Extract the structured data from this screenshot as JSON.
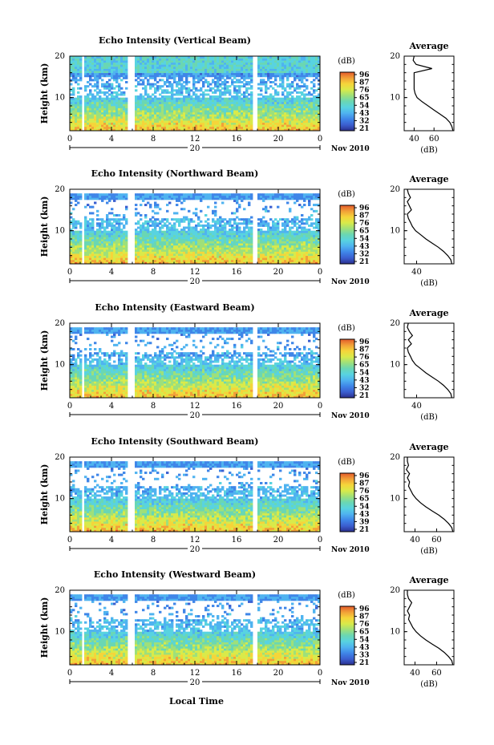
{
  "figure": {
    "global_xlabel": "Local Time",
    "date_label": "Nov 2010",
    "day_label": "20",
    "ylabel": "Height (km)",
    "colorbar_unit": "(dB)",
    "avg_title": "Average",
    "avg_xlabel": "(dB)"
  },
  "colors": {
    "scale": [
      "#2b2f8f",
      "#3b5fd0",
      "#3f86e8",
      "#4fb3f0",
      "#58d3e0",
      "#6ad7b3",
      "#9ee07a",
      "#d9ea4a",
      "#f5d53a",
      "#f2a038",
      "#e35a2a"
    ]
  },
  "chart_data": [
    {
      "type": "heatmap",
      "title": "Echo Intensity (Vertical Beam)",
      "x_ticks": [
        "0",
        "4",
        "8",
        "12",
        "16",
        "20",
        "0"
      ],
      "xlim": [
        0,
        24
      ],
      "y_ticks": [
        "10",
        "20"
      ],
      "ylim": [
        2,
        20
      ],
      "colorbar_ticks": [
        "96",
        "87",
        "76",
        "65",
        "54",
        "43",
        "32",
        "21"
      ],
      "data_gaps_hours": [
        [
          1.2,
          1.4
        ],
        [
          5.5,
          6.3
        ],
        [
          17.6,
          17.9
        ]
      ],
      "profile": {
        "title": "Average",
        "x_ticks": [
          "40",
          "60"
        ],
        "xlim": [
          30,
          80
        ],
        "y_ticks": [
          "10",
          "20"
        ],
        "ylim": [
          2,
          20
        ],
        "height_km": [
          2,
          3,
          4,
          5,
          6,
          7,
          8,
          9,
          10,
          11,
          12,
          13,
          14,
          15,
          16,
          17,
          18,
          19,
          20
        ],
        "value_db": [
          79,
          78,
          76,
          72,
          66,
          60,
          54,
          48,
          43,
          41,
          40,
          40,
          40,
          40,
          40,
          58,
          42,
          39,
          40
        ]
      }
    },
    {
      "type": "heatmap",
      "title": "Echo Intensity (Northward Beam)",
      "x_ticks": [
        "0",
        "4",
        "8",
        "12",
        "16",
        "20",
        "0"
      ],
      "xlim": [
        0,
        24
      ],
      "y_ticks": [
        "10",
        "20"
      ],
      "ylim": [
        2,
        20
      ],
      "colorbar_ticks": [
        "96",
        "87",
        "76",
        "65",
        "54",
        "43",
        "32",
        "21"
      ],
      "data_gaps_hours": [
        [
          1.2,
          1.4
        ],
        [
          5.5,
          6.3
        ],
        [
          17.6,
          17.9
        ]
      ],
      "profile": {
        "title": "Average",
        "x_ticks": [
          "40"
        ],
        "xlim": [
          28,
          76
        ],
        "y_ticks": [
          "10",
          "20"
        ],
        "ylim": [
          2,
          20
        ],
        "height_km": [
          2,
          3,
          4,
          5,
          6,
          7,
          8,
          9,
          10,
          11,
          12,
          13,
          14,
          15,
          16,
          17,
          18,
          19,
          20
        ],
        "value_db": [
          74,
          73,
          70,
          66,
          61,
          55,
          49,
          44,
          39,
          36,
          34,
          32,
          31,
          35,
          33,
          31,
          34,
          32,
          31
        ]
      }
    },
    {
      "type": "heatmap",
      "title": "Echo Intensity (Eastward Beam)",
      "x_ticks": [
        "0",
        "4",
        "8",
        "12",
        "16",
        "20",
        "0"
      ],
      "xlim": [
        0,
        24
      ],
      "y_ticks": [
        "10",
        "20"
      ],
      "ylim": [
        2,
        20
      ],
      "colorbar_ticks": [
        "96",
        "87",
        "76",
        "65",
        "54",
        "43",
        "32",
        "21"
      ],
      "data_gaps_hours": [
        [
          1.2,
          1.4
        ],
        [
          5.5,
          6.3
        ],
        [
          17.6,
          17.9
        ]
      ],
      "profile": {
        "title": "Average",
        "x_ticks": [
          "40"
        ],
        "xlim": [
          28,
          76
        ],
        "y_ticks": [
          "10",
          "20"
        ],
        "ylim": [
          2,
          20
        ],
        "height_km": [
          2,
          3,
          4,
          5,
          6,
          7,
          8,
          9,
          10,
          11,
          12,
          13,
          14,
          15,
          16,
          17,
          18,
          19,
          20
        ],
        "value_db": [
          74,
          73,
          70,
          66,
          61,
          55,
          49,
          44,
          39,
          36,
          34,
          32,
          31,
          35,
          32,
          36,
          33,
          31,
          32
        ]
      }
    },
    {
      "type": "heatmap",
      "title": "Echo Intensity (Southward Beam)",
      "x_ticks": [
        "0",
        "4",
        "8",
        "12",
        "16",
        "20",
        "0"
      ],
      "xlim": [
        0,
        24
      ],
      "y_ticks": [
        "10",
        "20"
      ],
      "ylim": [
        2,
        20
      ],
      "colorbar_ticks": [
        "96",
        "87",
        "76",
        "65",
        "54",
        "43",
        "39",
        "21"
      ],
      "data_gaps_hours": [
        [
          1.2,
          1.4
        ],
        [
          5.5,
          6.3
        ],
        [
          17.6,
          17.9
        ]
      ],
      "profile": {
        "title": "Average",
        "x_ticks": [
          "40",
          "60"
        ],
        "xlim": [
          30,
          76
        ],
        "y_ticks": [
          "10",
          "20"
        ],
        "ylim": [
          2,
          20
        ],
        "height_km": [
          2,
          3,
          4,
          5,
          6,
          7,
          8,
          9,
          10,
          11,
          12,
          13,
          14,
          15,
          16,
          17,
          18,
          19,
          20
        ],
        "value_db": [
          75,
          74,
          71,
          67,
          62,
          56,
          50,
          45,
          41,
          38,
          36,
          34,
          35,
          33,
          35,
          32,
          34,
          33,
          33
        ]
      }
    },
    {
      "type": "heatmap",
      "title": "Echo Intensity (Westward Beam)",
      "x_ticks": [
        "0",
        "4",
        "8",
        "12",
        "16",
        "20",
        "0"
      ],
      "xlim": [
        0,
        24
      ],
      "y_ticks": [
        "10",
        "20"
      ],
      "ylim": [
        2,
        20
      ],
      "colorbar_ticks": [
        "96",
        "87",
        "76",
        "65",
        "54",
        "43",
        "33",
        "21"
      ],
      "data_gaps_hours": [
        [
          1.2,
          1.4
        ],
        [
          5.5,
          6.3
        ],
        [
          17.6,
          17.9
        ]
      ],
      "profile": {
        "title": "Average",
        "x_ticks": [
          "40",
          "60"
        ],
        "xlim": [
          30,
          76
        ],
        "y_ticks": [
          "10",
          "20"
        ],
        "ylim": [
          2,
          20
        ],
        "height_km": [
          2,
          3,
          4,
          5,
          6,
          7,
          8,
          9,
          10,
          11,
          12,
          13,
          14,
          15,
          16,
          17,
          18,
          19,
          20
        ],
        "value_db": [
          75,
          74,
          71,
          67,
          62,
          56,
          50,
          45,
          41,
          38,
          36,
          34,
          35,
          33,
          35,
          37,
          34,
          33,
          33
        ]
      }
    }
  ]
}
